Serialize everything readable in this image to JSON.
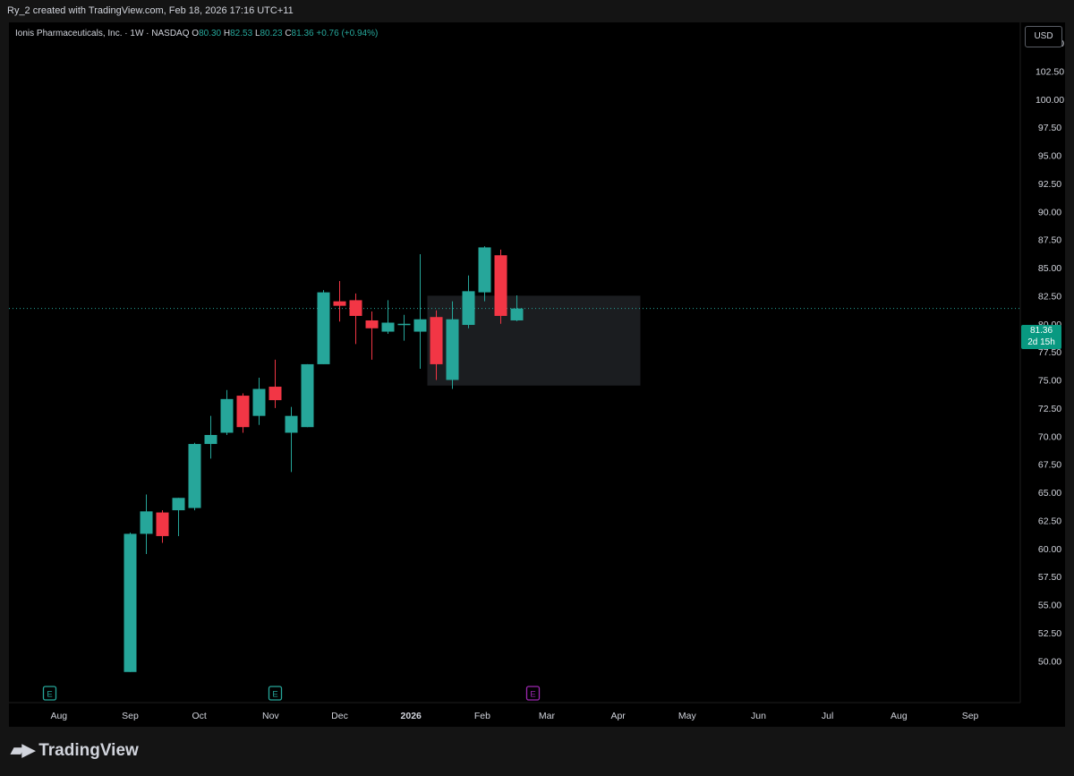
{
  "caption": "Ry_2 created with TradingView.com, Feb 18, 2026 17:16 UTC+11",
  "legend": {
    "symbol": "Ionis Pharmaceuticals, Inc. · 1W · NASDAQ",
    "o_label": "O",
    "o": "80.30",
    "h_label": "H",
    "h": "82.53",
    "l_label": "L",
    "l": "80.23",
    "c_label": "C",
    "c": "81.36",
    "change": "+0.76 (+0.94%)"
  },
  "currency": "USD",
  "price_tag": {
    "price": "81.36",
    "countdown": "2d 15h"
  },
  "brand": "TradingView",
  "colors": {
    "up": "#26a69a",
    "down": "#f23645",
    "background": "#000000",
    "earnings_past": "#26a69a",
    "earnings_future": "#9c27b0"
  },
  "chart_data": {
    "type": "candlestick",
    "interval": "1W",
    "ylim": [
      48.5,
      107.5
    ],
    "y_ticks": [
      "105.00",
      "102.50",
      "100.00",
      "97.50",
      "95.00",
      "92.50",
      "90.00",
      "87.50",
      "85.00",
      "82.50",
      "80.00",
      "77.50",
      "75.00",
      "72.50",
      "70.00",
      "67.50",
      "65.00",
      "62.50",
      "60.00",
      "57.50",
      "55.00",
      "52.50",
      "50.00"
    ],
    "x_labels": [
      "Aug",
      "Sep",
      "Oct",
      "Nov",
      "Dec",
      "2026",
      "Feb",
      "Mar",
      "Apr",
      "May",
      "Jun",
      "Jul",
      "Aug",
      "Sep"
    ],
    "last_price": 81.36,
    "candles": [
      {
        "date": "2025-09-01",
        "o": 49.0,
        "h": 61.4,
        "l": 49.0,
        "c": 61.3
      },
      {
        "date": "2025-09-08",
        "o": 61.3,
        "h": 64.8,
        "l": 59.5,
        "c": 63.3
      },
      {
        "date": "2025-09-15",
        "o": 63.2,
        "h": 63.4,
        "l": 60.5,
        "c": 61.1
      },
      {
        "date": "2025-09-22",
        "o": 63.4,
        "h": 64.5,
        "l": 61.1,
        "c": 64.5
      },
      {
        "date": "2025-09-29",
        "o": 63.6,
        "h": 69.4,
        "l": 63.4,
        "c": 69.3
      },
      {
        "date": "2025-10-06",
        "o": 69.3,
        "h": 71.8,
        "l": 68.0,
        "c": 70.1
      },
      {
        "date": "2025-10-13",
        "o": 70.3,
        "h": 74.1,
        "l": 70.1,
        "c": 73.3
      },
      {
        "date": "2025-10-20",
        "o": 73.6,
        "h": 73.8,
        "l": 70.3,
        "c": 70.8
      },
      {
        "date": "2025-10-27",
        "o": 71.8,
        "h": 75.2,
        "l": 71.0,
        "c": 74.2
      },
      {
        "date": "2025-11-03",
        "o": 74.4,
        "h": 76.8,
        "l": 72.5,
        "c": 73.2
      },
      {
        "date": "2025-11-10",
        "o": 70.3,
        "h": 72.6,
        "l": 66.8,
        "c": 71.8
      },
      {
        "date": "2025-11-17",
        "o": 70.8,
        "h": 76.4,
        "l": 70.8,
        "c": 76.4
      },
      {
        "date": "2025-11-24",
        "o": 76.4,
        "h": 83.0,
        "l": 76.4,
        "c": 82.8
      },
      {
        "date": "2025-12-01",
        "o": 82.0,
        "h": 83.8,
        "l": 80.2,
        "c": 81.6
      },
      {
        "date": "2025-12-08",
        "o": 82.1,
        "h": 82.7,
        "l": 78.2,
        "c": 80.7
      },
      {
        "date": "2025-12-15",
        "o": 80.3,
        "h": 81.1,
        "l": 76.8,
        "c": 79.6
      },
      {
        "date": "2025-12-22",
        "o": 79.3,
        "h": 82.1,
        "l": 79.1,
        "c": 80.1
      },
      {
        "date": "2025-12-29",
        "o": 80.0,
        "h": 80.8,
        "l": 78.5,
        "c": 80.0
      },
      {
        "date": "2026-01-05",
        "o": 79.3,
        "h": 86.2,
        "l": 76.0,
        "c": 80.4
      },
      {
        "date": "2026-01-12",
        "o": 80.6,
        "h": 81.2,
        "l": 75.0,
        "c": 76.4
      },
      {
        "date": "2026-01-19",
        "o": 75.0,
        "h": 82.0,
        "l": 74.2,
        "c": 80.4
      },
      {
        "date": "2026-01-26",
        "o": 79.9,
        "h": 84.3,
        "l": 79.6,
        "c": 82.9
      },
      {
        "date": "2026-02-02",
        "o": 82.8,
        "h": 86.9,
        "l": 82.0,
        "c": 86.8
      },
      {
        "date": "2026-02-09",
        "o": 86.1,
        "h": 86.6,
        "l": 80.0,
        "c": 80.7
      },
      {
        "date": "2026-02-16",
        "o": 80.3,
        "h": 82.53,
        "l": 80.23,
        "c": 81.36
      }
    ],
    "box": {
      "from": "2026-01-12",
      "to": "2026-04-13",
      "low": 74.5,
      "high": 82.5
    },
    "earnings": [
      {
        "date": "2025-07-28",
        "label": "E",
        "status": "past"
      },
      {
        "date": "2025-11-03",
        "label": "E",
        "status": "past"
      },
      {
        "date": "2026-02-23",
        "label": "E",
        "status": "upcoming"
      }
    ]
  }
}
